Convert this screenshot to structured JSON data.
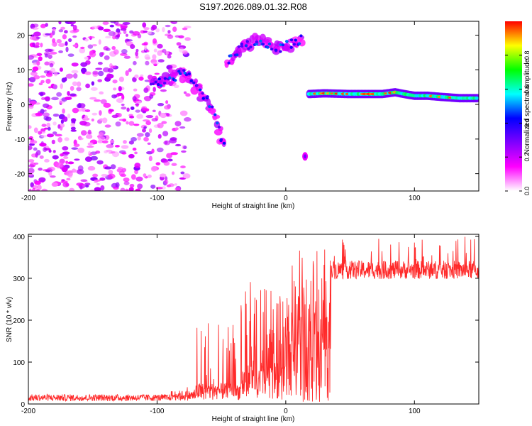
{
  "title": "S197.2026.089.01.32.R08",
  "chart_data": [
    {
      "type": "heatmap",
      "xlabel": "Height of straight line (km)",
      "ylabel": "Frequency (Hz)",
      "xlim": [
        -200,
        150
      ],
      "ylim": [
        -25,
        24
      ],
      "xticks": [
        -200,
        -100,
        0,
        100
      ],
      "yticks": [
        -20,
        -10,
        0,
        10,
        20
      ],
      "colorbar": {
        "label": "Normalized spectral amplitude",
        "range": [
          0,
          1
        ],
        "ticks": [
          "0.0",
          "0.2",
          "0.4",
          "0.6",
          "0.8"
        ],
        "colormap": [
          "#ffffff",
          "#ff00ff",
          "#8000ff",
          "#0000ff",
          "#00ffff",
          "#00ff00",
          "#ffff00",
          "#ff0000"
        ]
      },
      "features": [
        {
          "name": "noise-region",
          "x_range": [
            -200,
            -75
          ],
          "y_range": [
            -25,
            24
          ],
          "amplitude": 0.12
        },
        {
          "name": "descending-track",
          "points": [
            [
              -105,
              7
            ],
            [
              -95,
              6.5
            ],
            [
              -85,
              8
            ],
            [
              -78,
              9.5
            ],
            [
              -72,
              6
            ],
            [
              -65,
              3
            ],
            [
              -60,
              1
            ],
            [
              -55,
              -3
            ],
            [
              -50,
              -10
            ],
            [
              -48,
              -12
            ]
          ],
          "amplitude": 0.25
        },
        {
          "name": "upper-band",
          "points": [
            [
              -45,
              12
            ],
            [
              -40,
              15
            ],
            [
              -30,
              17
            ],
            [
              -20,
              19
            ],
            [
              -10,
              16
            ],
            [
              0,
              17
            ],
            [
              10,
              18
            ],
            [
              13,
              19
            ]
          ],
          "amplitude": 0.3
        },
        {
          "name": "isolated-blob",
          "points": [
            [
              15,
              -15
            ]
          ],
          "amplitude": 0.2
        },
        {
          "name": "steady-line",
          "points": [
            [
              18,
              3
            ],
            [
              30,
              3.2
            ],
            [
              50,
              3
            ],
            [
              75,
              3
            ],
            [
              85,
              3.5
            ],
            [
              92,
              3
            ],
            [
              100,
              2.5
            ],
            [
              110,
              2.5
            ],
            [
              120,
              2.2
            ],
            [
              135,
              1.8
            ],
            [
              150,
              1.8
            ]
          ],
          "amplitude": 0.85
        }
      ]
    },
    {
      "type": "line",
      "xlabel": "Height of straight line (km)",
      "ylabel": "SNR (10 * v/v)",
      "xlim": [
        -200,
        150
      ],
      "ylim": [
        0,
        405
      ],
      "xticks": [
        -200,
        -100,
        0,
        100
      ],
      "yticks": [
        0,
        100,
        200,
        300,
        400
      ],
      "color": "#ff2a2a",
      "segments": [
        {
          "x_range": [
            -200,
            -90
          ],
          "baseline": 15,
          "noise": 8,
          "spike_prob": 0,
          "spike_max": 0
        },
        {
          "x_range": [
            -90,
            -70
          ],
          "baseline": 20,
          "noise": 12,
          "spike_prob": 0.05,
          "spike_max": 60
        },
        {
          "x_range": [
            -70,
            -35
          ],
          "baseline": 30,
          "noise": 20,
          "spike_prob": 0.2,
          "spike_max": 200
        },
        {
          "x_range": [
            -35,
            0
          ],
          "baseline": 50,
          "noise": 40,
          "spike_prob": 0.35,
          "spike_max": 300
        },
        {
          "x_range": [
            0,
            35
          ],
          "baseline": 130,
          "noise": 90,
          "spike_prob": 0.4,
          "spike_max": 370
        },
        {
          "x_range": [
            35,
            150
          ],
          "baseline": 320,
          "noise": 22,
          "spike_prob": 0.08,
          "spike_max": 400
        }
      ]
    }
  ]
}
